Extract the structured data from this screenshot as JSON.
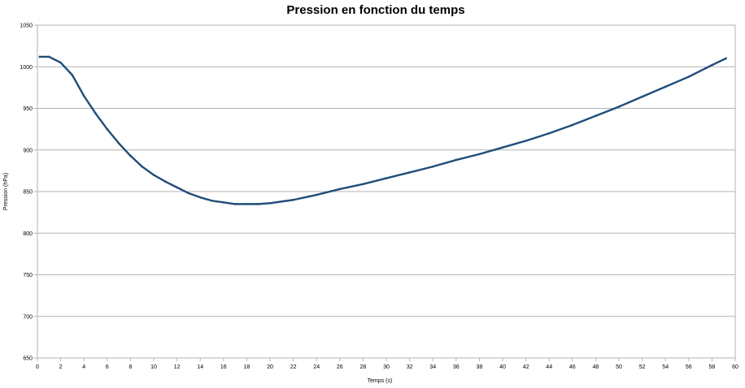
{
  "chart_data": {
    "type": "line",
    "title": "Pression en fonction du temps",
    "xlabel": "Temps (s)",
    "ylabel": "Pression (hPa)",
    "xlim": [
      0,
      60
    ],
    "ylim": [
      650,
      1050
    ],
    "xticks": [
      0,
      2,
      4,
      6,
      8,
      10,
      12,
      14,
      16,
      18,
      20,
      22,
      24,
      26,
      28,
      30,
      32,
      34,
      36,
      38,
      40,
      42,
      44,
      46,
      48,
      50,
      52,
      54,
      56,
      58,
      60
    ],
    "yticks": [
      650,
      700,
      750,
      800,
      850,
      900,
      950,
      1000,
      1050
    ],
    "grid": "horizontal",
    "legend": "none",
    "series": [
      {
        "color": "#1f4e79",
        "x": [
          0.2,
          1,
          2,
          3,
          4,
          5,
          6,
          7,
          8,
          9,
          10,
          11,
          12,
          13,
          14,
          15,
          16,
          17,
          18,
          19,
          20,
          22,
          24,
          26,
          28,
          30,
          32,
          34,
          36,
          38,
          40,
          42,
          44,
          46,
          48,
          50,
          52,
          54,
          56,
          58,
          59.2
        ],
        "y": [
          1012,
          1012,
          1005,
          990,
          965,
          944,
          925,
          908,
          893,
          880,
          870,
          862,
          855,
          848,
          843,
          839,
          837,
          835,
          835,
          835,
          836,
          840,
          846,
          853,
          859,
          866,
          873,
          880,
          888,
          895,
          903,
          911,
          920,
          930,
          941,
          952,
          964,
          976,
          988,
          1002,
          1010
        ]
      }
    ]
  }
}
